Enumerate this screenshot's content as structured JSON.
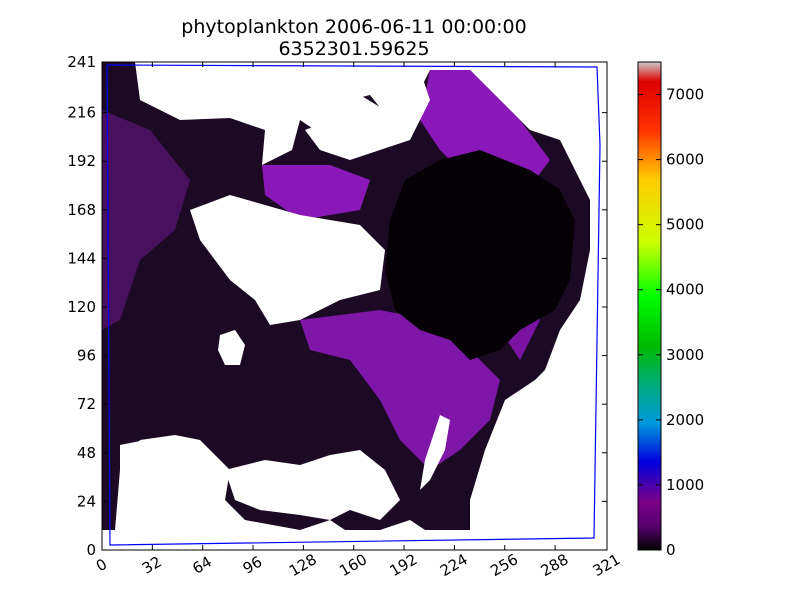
{
  "chart_data": {
    "type": "heatmap",
    "title": "phytoplankton 2006-06-11 00:00:00",
    "subtitle": "6352301.59625",
    "xlabel": "",
    "ylabel": "",
    "xlim": [
      0,
      321
    ],
    "ylim": [
      0,
      241
    ],
    "x_ticks": [
      0,
      32,
      64,
      96,
      128,
      160,
      192,
      224,
      256,
      288,
      321
    ],
    "y_ticks": [
      0,
      24,
      48,
      72,
      96,
      120,
      144,
      168,
      192,
      216,
      241
    ],
    "colorbar": {
      "vmin": 0,
      "vmax": 7500,
      "ticks": [
        0,
        1000,
        2000,
        3000,
        4000,
        5000,
        6000,
        7000
      ],
      "colormap": "nipy_spectral",
      "stops": [
        "#000000",
        "#7a0088",
        "#0000dd",
        "#0099dd",
        "#00aa88",
        "#00bb00",
        "#00ff00",
        "#ccff00",
        "#ffcc00",
        "#ff3300",
        "#dd0000",
        "#cccccc"
      ]
    },
    "colors": {
      "land": "#ffffff",
      "low_values": "#1a0820",
      "mid_values": "#7a10a0",
      "boundary_line": "#0000ff"
    }
  }
}
